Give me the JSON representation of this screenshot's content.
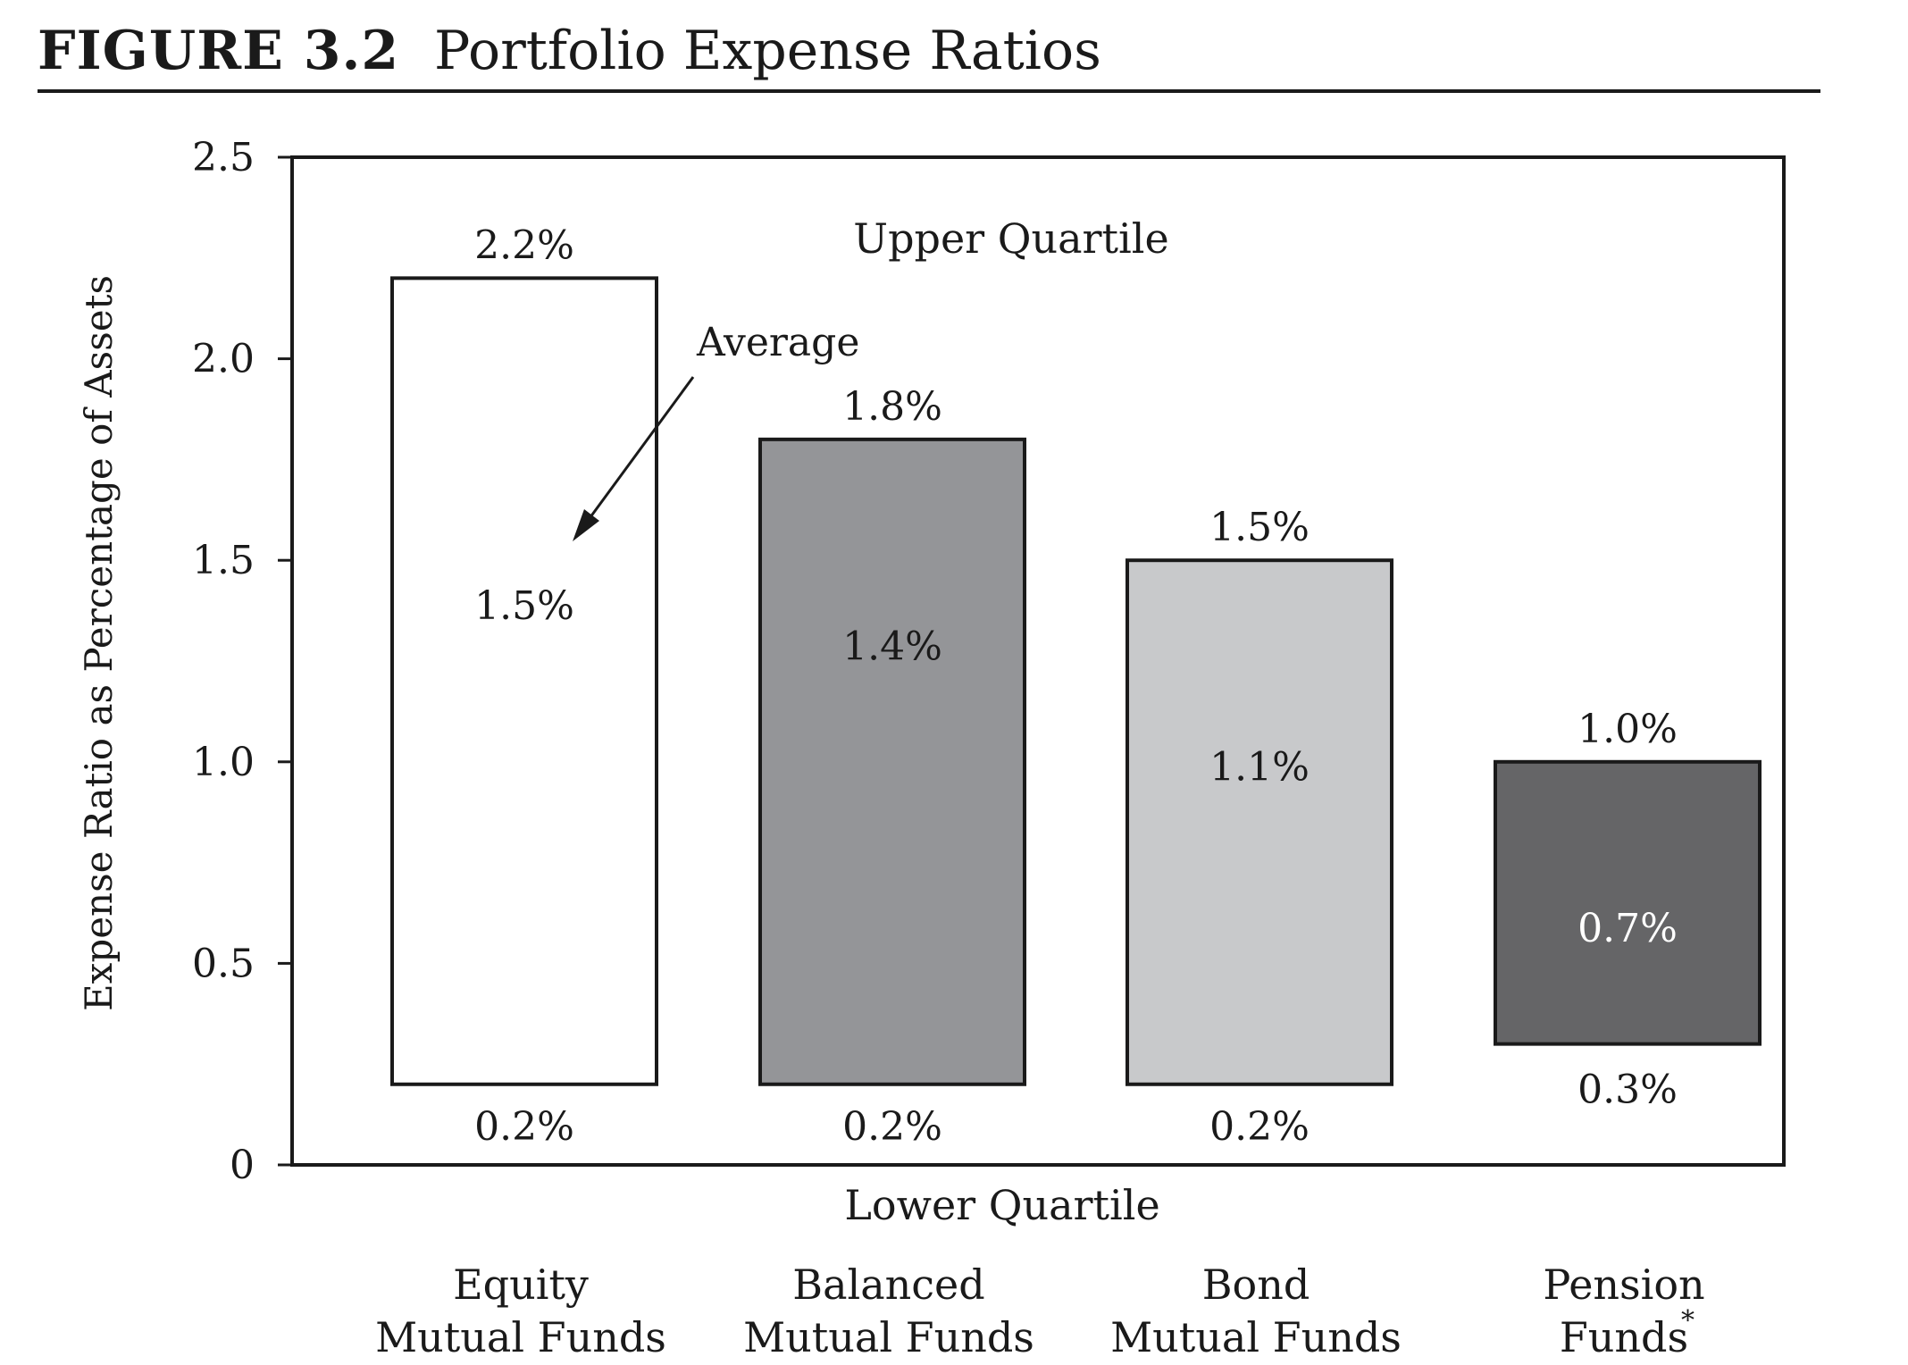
{
  "figure": {
    "label": "FIGURE 3.2",
    "title": "Portfolio Expense Ratios"
  },
  "chart_data": {
    "type": "bar",
    "subtype": "floating-range",
    "ylabel": "Expense Ratio as Percentage of Assets",
    "ylim": [
      0,
      2.5
    ],
    "yticks": [
      "0",
      "0.5",
      "1.0",
      "1.5",
      "2.0",
      "2.5"
    ],
    "yticks_values": [
      0,
      0.5,
      1.0,
      1.5,
      2.0,
      2.5
    ],
    "top_label": "Upper Quartile",
    "bottom_label": "Lower Quartile",
    "average_annotation": "Average",
    "grid": false,
    "categories": [
      {
        "line1": "Equity",
        "line2": "Mutual Funds",
        "marker": ""
      },
      {
        "line1": "Balanced",
        "line2": "Mutual Funds",
        "marker": ""
      },
      {
        "line1": "Bond",
        "line2": "Mutual Funds",
        "marker": ""
      },
      {
        "line1": "Pension",
        "line2": "Funds",
        "marker": "*"
      }
    ],
    "upper_quartile": [
      2.2,
      1.8,
      1.5,
      1.0
    ],
    "average": [
      1.5,
      1.4,
      1.1,
      0.7
    ],
    "lower_quartile": [
      0.2,
      0.2,
      0.2,
      0.3
    ],
    "upper_labels": [
      "2.2%",
      "1.8%",
      "1.5%",
      "1.0%"
    ],
    "average_labels": [
      "1.5%",
      "1.4%",
      "1.1%",
      "0.7%"
    ],
    "lower_labels": [
      "0.2%",
      "0.2%",
      "0.2%",
      "0.3%"
    ],
    "colors": [
      "#ffffff",
      "#949598",
      "#c8c9cb",
      "#656567"
    ],
    "average_label_colors": [
      "#1a1a1a",
      "#1a1a1a",
      "#1a1a1a",
      "#ffffff"
    ]
  }
}
